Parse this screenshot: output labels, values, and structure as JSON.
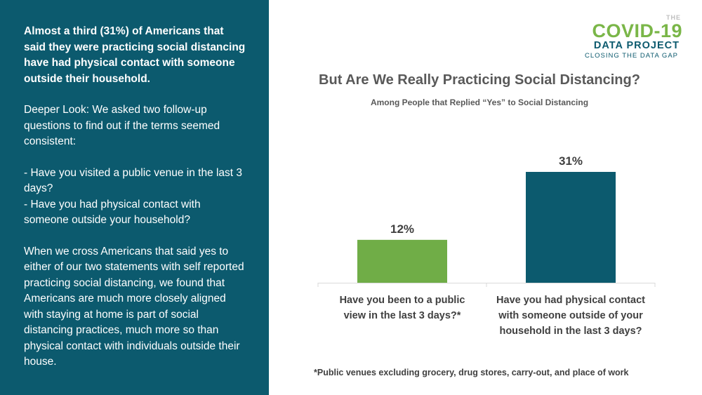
{
  "left_panel": {
    "lead": "Almost a third (31%) of Americans that said they were practicing social distancing have had physical contact with someone outside their household.",
    "deeper_look": "Deeper Look: We asked two follow-up questions to find out if the terms seemed consistent:",
    "question_1": "- Have you visited a public venue in the last 3 days?",
    "question_2": "- Have you had physical contact with someone outside your household?",
    "conclusion": "When we cross Americans that said yes to either of our two statements with self reported practicing social distancing, we found that Americans are much more closely aligned with staying at home is part of social distancing practices, much more so than physical contact with individuals outside their house."
  },
  "logo": {
    "the": "THE",
    "main": "COVID-19",
    "sub": "DATA PROJECT",
    "tagline": "CLOSING THE DATA GAP"
  },
  "chart_data": {
    "type": "bar",
    "title": "But Are We Really Practicing Social Distancing?",
    "subtitle": "Among People that Replied “Yes” to Social Distancing",
    "categories": [
      [
        "Have you been to a public",
        "view in the last 3 days?*"
      ],
      [
        "Have you had physical contact",
        "with someone outside of your",
        "household in the last 3 days?"
      ]
    ],
    "values": [
      12,
      31
    ],
    "data_labels": [
      "12%",
      "31%"
    ],
    "colors": [
      "#70ad47",
      "#0c5a6e"
    ],
    "ylim": [
      0,
      31
    ],
    "grid": false,
    "legend": "none"
  },
  "footnote": "*Public venues excluding grocery, drug stores, carry-out, and place of work"
}
